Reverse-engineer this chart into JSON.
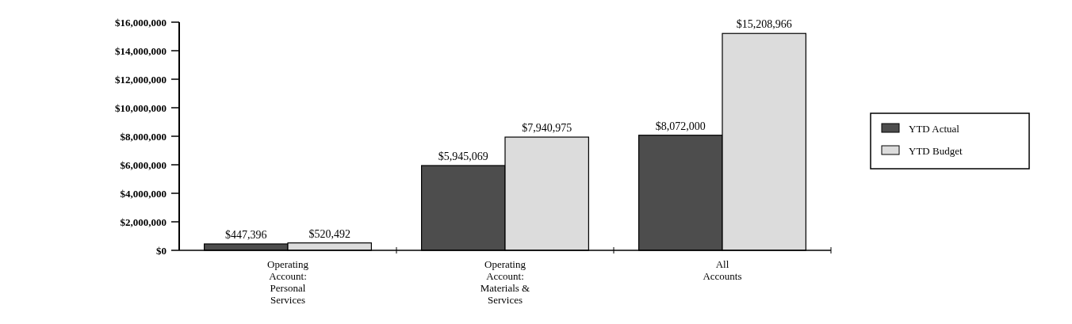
{
  "chart_data": {
    "type": "bar",
    "categories": [
      "Operating Account: Personal Services",
      "Operating Account: Materials & Services",
      "All Accounts"
    ],
    "series": [
      {
        "name": "YTD Actual",
        "color": "#4d4d4d",
        "values": [
          447396,
          5945069,
          8072000
        ],
        "value_labels": [
          "$447,396",
          "$5,945,069",
          "$8,072,000"
        ]
      },
      {
        "name": "YTD Budget",
        "color": "#dcdcdc",
        "values": [
          520492,
          7940975,
          15208966
        ],
        "value_labels": [
          "$520,492",
          "$7,940,975",
          "$15,208,966"
        ]
      }
    ],
    "ylim": [
      0,
      16000000
    ],
    "yticks": [
      {
        "value": 0,
        "label": "$0"
      },
      {
        "value": 2000000,
        "label": "$2,000,000"
      },
      {
        "value": 4000000,
        "label": "$4,000,000"
      },
      {
        "value": 6000000,
        "label": "$6,000,000"
      },
      {
        "value": 8000000,
        "label": "$8,000,000"
      },
      {
        "value": 10000000,
        "label": "$10,000,000"
      },
      {
        "value": 12000000,
        "label": "$12,000,000"
      },
      {
        "value": 14000000,
        "label": "$14,000,000"
      },
      {
        "value": 16000000,
        "label": "$16,000,000"
      }
    ],
    "legend": "right",
    "grid": false
  }
}
